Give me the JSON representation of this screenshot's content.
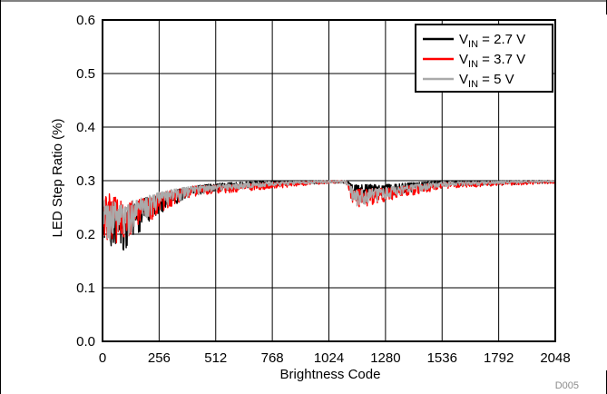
{
  "chart_data": {
    "type": "line",
    "xlabel": "Brightness Code",
    "ylabel": "LED Step Ratio (%)",
    "xlim": [
      0,
      2048
    ],
    "ylim": [
      0.0,
      0.6
    ],
    "xticks": [
      0,
      256,
      512,
      768,
      1024,
      1280,
      1536,
      1792,
      2048
    ],
    "yticks": [
      0.0,
      0.1,
      0.2,
      0.3,
      0.4,
      0.5,
      0.6
    ],
    "ytick_labels": [
      "0.0",
      "0.1",
      "0.2",
      "0.3",
      "0.4",
      "0.5",
      "0.6"
    ],
    "grid": true,
    "legend_position": "top-right",
    "code_label": "D005",
    "series": [
      {
        "label_main": "V",
        "label_sub": "IN",
        "label_rest": " = 2.7 V",
        "color": "#000000",
        "envelope": [
          {
            "x": 0,
            "max": 0.42,
            "min": 0.17
          },
          {
            "x": 100,
            "max": 0.41,
            "min": 0.17
          },
          {
            "x": 200,
            "max": 0.37,
            "min": 0.22
          },
          {
            "x": 300,
            "max": 0.34,
            "min": 0.25
          },
          {
            "x": 400,
            "max": 0.33,
            "min": 0.27
          },
          {
            "x": 512,
            "max": 0.325,
            "min": 0.28
          },
          {
            "x": 768,
            "max": 0.32,
            "min": 0.29
          },
          {
            "x": 1024,
            "max": 0.31,
            "min": 0.295
          },
          {
            "x": 1100,
            "max": 0.31,
            "min": 0.295
          },
          {
            "x": 1140,
            "max": 0.36,
            "min": 0.26
          },
          {
            "x": 1280,
            "max": 0.34,
            "min": 0.27
          },
          {
            "x": 1536,
            "max": 0.32,
            "min": 0.29
          },
          {
            "x": 1792,
            "max": 0.315,
            "min": 0.292
          },
          {
            "x": 2048,
            "max": 0.31,
            "min": 0.296
          }
        ]
      },
      {
        "label_main": "V",
        "label_sub": "IN",
        "label_rest": " = 3.7 V",
        "color": "#ff0000",
        "envelope": [
          {
            "x": 0,
            "max": 0.48,
            "min": 0.19
          },
          {
            "x": 100,
            "max": 0.42,
            "min": 0.18
          },
          {
            "x": 200,
            "max": 0.37,
            "min": 0.22
          },
          {
            "x": 300,
            "max": 0.345,
            "min": 0.25
          },
          {
            "x": 400,
            "max": 0.33,
            "min": 0.27
          },
          {
            "x": 512,
            "max": 0.325,
            "min": 0.275
          },
          {
            "x": 768,
            "max": 0.32,
            "min": 0.285
          },
          {
            "x": 1024,
            "max": 0.31,
            "min": 0.295
          },
          {
            "x": 1100,
            "max": 0.31,
            "min": 0.295
          },
          {
            "x": 1140,
            "max": 0.365,
            "min": 0.245
          },
          {
            "x": 1280,
            "max": 0.34,
            "min": 0.26
          },
          {
            "x": 1536,
            "max": 0.32,
            "min": 0.285
          },
          {
            "x": 1792,
            "max": 0.315,
            "min": 0.29
          },
          {
            "x": 2048,
            "max": 0.31,
            "min": 0.295
          }
        ]
      },
      {
        "label_main": "V",
        "label_sub": "IN",
        "label_rest": " = 5 V",
        "color": "#aaaaaa",
        "envelope": [
          {
            "x": 0,
            "max": 0.44,
            "min": 0.18
          },
          {
            "x": 100,
            "max": 0.4,
            "min": 0.19
          },
          {
            "x": 200,
            "max": 0.36,
            "min": 0.23
          },
          {
            "x": 300,
            "max": 0.34,
            "min": 0.255
          },
          {
            "x": 400,
            "max": 0.33,
            "min": 0.27
          },
          {
            "x": 512,
            "max": 0.32,
            "min": 0.28
          },
          {
            "x": 768,
            "max": 0.315,
            "min": 0.29
          },
          {
            "x": 1024,
            "max": 0.31,
            "min": 0.295
          },
          {
            "x": 1100,
            "max": 0.31,
            "min": 0.295
          },
          {
            "x": 1140,
            "max": 0.35,
            "min": 0.25
          },
          {
            "x": 1280,
            "max": 0.335,
            "min": 0.265
          },
          {
            "x": 1536,
            "max": 0.318,
            "min": 0.288
          },
          {
            "x": 1792,
            "max": 0.312,
            "min": 0.293
          },
          {
            "x": 2048,
            "max": 0.308,
            "min": 0.297
          }
        ]
      }
    ]
  }
}
